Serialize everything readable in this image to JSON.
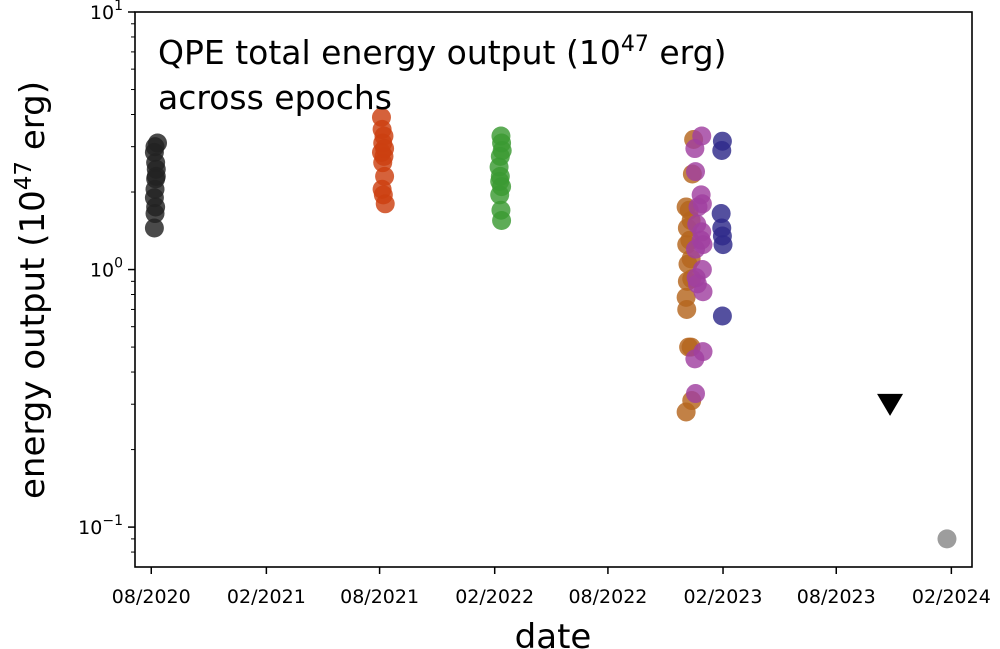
{
  "chart_data": {
    "type": "scatter",
    "title_lines": [
      "QPE total energy output (10",
      "47",
      " erg)",
      "across epochs"
    ],
    "xlabel": "date",
    "ylabel_parts": [
      "energy output (10",
      "47",
      " erg)"
    ],
    "yscale": "log",
    "ylim": [
      0.07,
      10
    ],
    "xlim": [
      "2020-07-06",
      "2024-03-05"
    ],
    "x_ticks": [
      {
        "date": "2020-08-01",
        "label": "08/2020"
      },
      {
        "date": "2021-02-01",
        "label": "02/2021"
      },
      {
        "date": "2021-08-01",
        "label": "08/2021"
      },
      {
        "date": "2022-02-01",
        "label": "02/2022"
      },
      {
        "date": "2022-08-01",
        "label": "08/2022"
      },
      {
        "date": "2023-02-01",
        "label": "02/2023"
      },
      {
        "date": "2023-08-01",
        "label": "08/2023"
      },
      {
        "date": "2024-02-01",
        "label": "02/2024"
      }
    ],
    "y_ticks": [
      {
        "value": 0.1,
        "base": "10",
        "exp": "−1"
      },
      {
        "value": 1,
        "base": "10",
        "exp": "0"
      },
      {
        "value": 10,
        "base": "10",
        "exp": "1"
      }
    ],
    "grid": false,
    "series": [
      {
        "color": "#222222",
        "marker": "circle",
        "points": [
          {
            "x": "2020-08-06",
            "y": 1.45
          },
          {
            "x": "2020-08-07",
            "y": 1.65
          },
          {
            "x": "2020-08-08",
            "y": 1.75
          },
          {
            "x": "2020-08-06",
            "y": 1.9
          },
          {
            "x": "2020-08-07",
            "y": 2.05
          },
          {
            "x": "2020-08-08",
            "y": 2.25
          },
          {
            "x": "2020-08-09",
            "y": 2.45
          },
          {
            "x": "2020-08-08",
            "y": 2.6
          },
          {
            "x": "2020-08-06",
            "y": 2.85
          },
          {
            "x": "2020-08-07",
            "y": 3.0
          },
          {
            "x": "2020-08-11",
            "y": 3.1
          },
          {
            "x": "2020-08-09",
            "y": 2.3
          }
        ]
      },
      {
        "color": "#cc4010",
        "marker": "circle",
        "points": [
          {
            "x": "2021-08-10",
            "y": 1.8
          },
          {
            "x": "2021-08-07",
            "y": 1.95
          },
          {
            "x": "2021-08-05",
            "y": 2.05
          },
          {
            "x": "2021-08-09",
            "y": 2.3
          },
          {
            "x": "2021-08-06",
            "y": 2.6
          },
          {
            "x": "2021-08-08",
            "y": 2.75
          },
          {
            "x": "2021-08-04",
            "y": 2.85
          },
          {
            "x": "2021-08-09",
            "y": 2.95
          },
          {
            "x": "2021-08-06",
            "y": 3.1
          },
          {
            "x": "2021-08-08",
            "y": 3.3
          },
          {
            "x": "2021-08-05",
            "y": 3.5
          },
          {
            "x": "2021-08-04",
            "y": 3.9
          }
        ]
      },
      {
        "color": "#3a9a32",
        "marker": "circle",
        "points": [
          {
            "x": "2022-02-12",
            "y": 1.55
          },
          {
            "x": "2022-02-11",
            "y": 1.7
          },
          {
            "x": "2022-02-09",
            "y": 1.95
          },
          {
            "x": "2022-02-12",
            "y": 2.1
          },
          {
            "x": "2022-02-10",
            "y": 2.3
          },
          {
            "x": "2022-02-08",
            "y": 2.5
          },
          {
            "x": "2022-02-13",
            "y": 2.9
          },
          {
            "x": "2022-02-10",
            "y": 2.75
          },
          {
            "x": "2022-02-12",
            "y": 3.1
          },
          {
            "x": "2022-02-11",
            "y": 3.3
          },
          {
            "x": "2022-02-09",
            "y": 2.2
          }
        ]
      },
      {
        "color": "#b5651d",
        "marker": "circle",
        "points": [
          {
            "x": "2022-12-04",
            "y": 0.28
          },
          {
            "x": "2022-12-13",
            "y": 0.31
          },
          {
            "x": "2022-12-08",
            "y": 0.5
          },
          {
            "x": "2022-12-12",
            "y": 0.5
          },
          {
            "x": "2022-12-05",
            "y": 0.7
          },
          {
            "x": "2022-12-04",
            "y": 0.78
          },
          {
            "x": "2022-12-06",
            "y": 0.9
          },
          {
            "x": "2022-12-13",
            "y": 0.92
          },
          {
            "x": "2022-12-07",
            "y": 1.05
          },
          {
            "x": "2022-12-12",
            "y": 1.1
          },
          {
            "x": "2022-12-05",
            "y": 1.25
          },
          {
            "x": "2022-12-10",
            "y": 1.3
          },
          {
            "x": "2022-12-06",
            "y": 1.45
          },
          {
            "x": "2022-12-12",
            "y": 1.55
          },
          {
            "x": "2022-12-04",
            "y": 1.75
          },
          {
            "x": "2022-12-09",
            "y": 1.7
          },
          {
            "x": "2022-12-14",
            "y": 2.35
          },
          {
            "x": "2022-12-16",
            "y": 3.2
          }
        ]
      },
      {
        "color": "#a040a0",
        "marker": "circle",
        "points": [
          {
            "x": "2022-12-19",
            "y": 0.33
          },
          {
            "x": "2022-12-18",
            "y": 0.45
          },
          {
            "x": "2022-12-31",
            "y": 0.48
          },
          {
            "x": "2022-12-22",
            "y": 0.88
          },
          {
            "x": "2022-12-31",
            "y": 0.82
          },
          {
            "x": "2022-12-20",
            "y": 0.93
          },
          {
            "x": "2022-12-30",
            "y": 1.0
          },
          {
            "x": "2022-12-28",
            "y": 1.3
          },
          {
            "x": "2022-12-19",
            "y": 1.2
          },
          {
            "x": "2022-12-21",
            "y": 1.5
          },
          {
            "x": "2022-12-31",
            "y": 1.25
          },
          {
            "x": "2022-12-29",
            "y": 1.4
          },
          {
            "x": "2022-12-23",
            "y": 1.75
          },
          {
            "x": "2022-12-30",
            "y": 1.8
          },
          {
            "x": "2022-12-28",
            "y": 1.95
          },
          {
            "x": "2022-12-19",
            "y": 2.4
          },
          {
            "x": "2022-12-18",
            "y": 2.95
          },
          {
            "x": "2022-12-29",
            "y": 3.3
          }
        ]
      },
      {
        "color": "#2e2a8a",
        "marker": "circle",
        "points": [
          {
            "x": "2023-01-31",
            "y": 0.66
          },
          {
            "x": "2023-02-01",
            "y": 1.25
          },
          {
            "x": "2023-01-31",
            "y": 1.35
          },
          {
            "x": "2023-01-30",
            "y": 1.45
          },
          {
            "x": "2023-01-29",
            "y": 1.65
          },
          {
            "x": "2023-01-30",
            "y": 2.9
          },
          {
            "x": "2023-01-31",
            "y": 3.15
          }
        ]
      },
      {
        "color": "#000000",
        "marker": "triangle-down",
        "points": [
          {
            "x": "2023-10-26",
            "y": 0.3
          }
        ]
      },
      {
        "color": "#888888",
        "marker": "circle",
        "points": [
          {
            "x": "2024-01-25",
            "y": 0.09
          }
        ]
      }
    ]
  }
}
